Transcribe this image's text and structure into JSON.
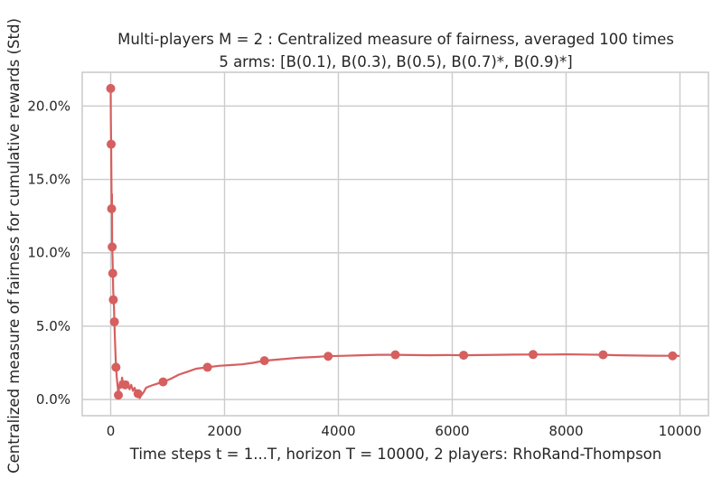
{
  "chart_data": {
    "type": "line",
    "title_line1": "Multi-players M = 2 : Centralized measure of fairness, averaged 100 times",
    "title_line2": "5 arms: [B(0.1), B(0.3), B(0.5), B(0.7)*, B(0.9)*]",
    "xlabel": "Time steps t = 1...T, horizon T = 10000, 2 players: RhoRand-Thompson",
    "ylabel": "Centralized measure of fairness for cumulative rewards (Std)",
    "xlim": [
      -500,
      10500
    ],
    "ylim": [
      -0.011,
      0.223
    ],
    "x_ticks": [
      0,
      2000,
      4000,
      6000,
      8000,
      10000
    ],
    "x_tick_labels": [
      "0",
      "2000",
      "4000",
      "6000",
      "8000",
      "10000"
    ],
    "y_ticks": [
      0.0,
      0.05,
      0.1,
      0.15,
      0.2
    ],
    "y_tick_labels": [
      "0.0%",
      "5.0%",
      "10.0%",
      "15.0%",
      "20.0%"
    ],
    "grid": true,
    "color": "#d65f5f",
    "series": [
      {
        "line": [
          [
            0,
            0.212
          ],
          [
            3,
            0.19
          ],
          [
            8,
            0.174
          ],
          [
            12,
            0.15
          ],
          [
            18,
            0.13
          ],
          [
            22,
            0.14
          ],
          [
            26,
            0.104
          ],
          [
            32,
            0.098
          ],
          [
            38,
            0.086
          ],
          [
            45,
            0.074
          ],
          [
            52,
            0.068
          ],
          [
            58,
            0.062
          ],
          [
            65,
            0.053
          ],
          [
            72,
            0.045
          ],
          [
            80,
            0.036
          ],
          [
            88,
            0.028
          ],
          [
            95,
            0.022
          ],
          [
            105,
            0.016
          ],
          [
            115,
            0.012
          ],
          [
            125,
            0.008
          ],
          [
            135,
            0.003
          ],
          [
            150,
            0.009
          ],
          [
            165,
            0.012
          ],
          [
            180,
            0.008
          ],
          [
            200,
            0.015
          ],
          [
            220,
            0.01
          ],
          [
            240,
            0.012
          ],
          [
            260,
            0.008
          ],
          [
            280,
            0.01
          ],
          [
            300,
            0.012
          ],
          [
            330,
            0.007
          ],
          [
            360,
            0.01
          ],
          [
            390,
            0.006
          ],
          [
            420,
            0.008
          ],
          [
            450,
            0.004
          ],
          [
            480,
            0.004
          ],
          [
            510,
            0.001
          ],
          [
            540,
            0.003
          ],
          [
            580,
            0.005
          ],
          [
            620,
            0.008
          ],
          [
            680,
            0.009
          ],
          [
            750,
            0.01
          ],
          [
            830,
            0.011
          ],
          [
            920,
            0.012
          ],
          [
            1050,
            0.014
          ],
          [
            1200,
            0.017
          ],
          [
            1350,
            0.019
          ],
          [
            1500,
            0.021
          ],
          [
            1700,
            0.022
          ],
          [
            1900,
            0.023
          ],
          [
            2100,
            0.0235
          ],
          [
            2300,
            0.024
          ],
          [
            2500,
            0.025
          ],
          [
            2700,
            0.0265
          ],
          [
            3000,
            0.0275
          ],
          [
            3300,
            0.0285
          ],
          [
            3600,
            0.029
          ],
          [
            3800,
            0.0295
          ],
          [
            4100,
            0.0298
          ],
          [
            4400,
            0.0302
          ],
          [
            4700,
            0.0305
          ],
          [
            5000,
            0.0305
          ],
          [
            5300,
            0.0303
          ],
          [
            5600,
            0.0302
          ],
          [
            5900,
            0.0303
          ],
          [
            6200,
            0.0302
          ],
          [
            6500,
            0.0303
          ],
          [
            6800,
            0.0305
          ],
          [
            7100,
            0.0306
          ],
          [
            7400,
            0.0307
          ],
          [
            7700,
            0.0307
          ],
          [
            8000,
            0.0308
          ],
          [
            8300,
            0.0307
          ],
          [
            8650,
            0.0305
          ],
          [
            8900,
            0.0302
          ],
          [
            9200,
            0.03
          ],
          [
            9500,
            0.0299
          ],
          [
            9870,
            0.0298
          ],
          [
            9990,
            0.0297
          ]
        ],
        "markers": [
          [
            0,
            0.212
          ],
          [
            8,
            0.174
          ],
          [
            16,
            0.13
          ],
          [
            26,
            0.104
          ],
          [
            36,
            0.086
          ],
          [
            46,
            0.068
          ],
          [
            65,
            0.053
          ],
          [
            93,
            0.022
          ],
          [
            135,
            0.003
          ],
          [
            255,
            0.01
          ],
          [
            480,
            0.004
          ],
          [
            920,
            0.012
          ],
          [
            1700,
            0.022
          ],
          [
            2700,
            0.0265
          ],
          [
            3820,
            0.0295
          ],
          [
            5000,
            0.0305
          ],
          [
            6200,
            0.0302
          ],
          [
            7420,
            0.0307
          ],
          [
            8650,
            0.0305
          ],
          [
            9870,
            0.0298
          ]
        ]
      }
    ]
  }
}
